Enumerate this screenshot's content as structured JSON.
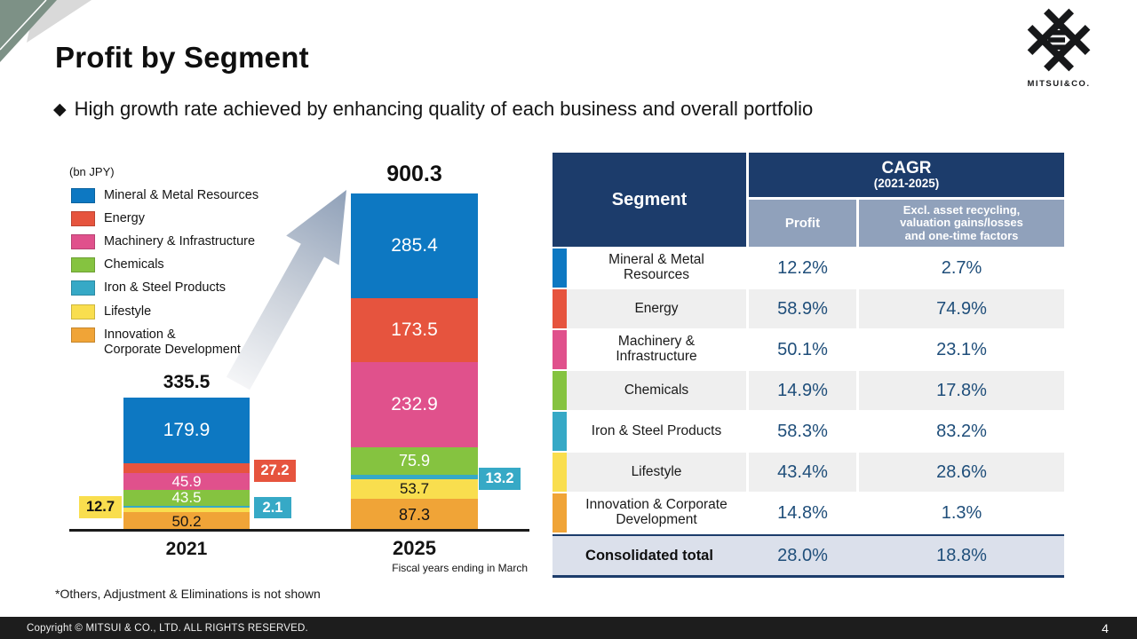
{
  "slide": {
    "title": "Profit by Segment",
    "bullet_glyph": "◆",
    "subtitle": "High growth rate achieved by enhancing quality of each business and overall portfolio",
    "logo_text": "MITSUI&CO.",
    "footer": "Copyright © MITSUI & CO., LTD. ALL RIGHTS RESERVED.",
    "page_number": "4"
  },
  "theme": {
    "header_navy": "#1c3c6b",
    "subheader_blue_gray": "#90a1bb",
    "value_text_navy": "#1f4e7a",
    "row_alt_gray": "#efefef",
    "total_row_bg": "#dbe0eb",
    "footer_bg": "#1d1d1d",
    "corner_green": "#7d9186",
    "corner_gray": "#d9d9d9",
    "arrow_gradient_from": "#f4f5f7",
    "arrow_gradient_to": "#8fa0b8"
  },
  "chart_data": {
    "type": "bar",
    "stacked": true,
    "unit_label": "(bn JPY)",
    "categories": [
      "2021",
      "2025"
    ],
    "totals": [
      335.5,
      900.3
    ],
    "series": [
      {
        "name": "Mineral & Metal Resources",
        "color": "#0d78c2",
        "values": [
          179.9,
          285.4
        ]
      },
      {
        "name": "Energy",
        "color": "#e6543e",
        "values": [
          27.2,
          173.5
        ]
      },
      {
        "name": "Machinery & Infrastructure",
        "color": "#e0518c",
        "values": [
          45.9,
          232.9
        ]
      },
      {
        "name": "Chemicals",
        "color": "#85c340",
        "values": [
          43.5,
          75.9
        ]
      },
      {
        "name": "Iron & Steel Products",
        "color": "#36a9c6",
        "values": [
          2.1,
          13.2
        ]
      },
      {
        "name": "Lifestyle",
        "color": "#f9de4e",
        "values": [
          12.7,
          53.7
        ]
      },
      {
        "name": "Innovation & Corporate Development",
        "color": "#f0a437",
        "values": [
          50.2,
          87.3
        ]
      }
    ],
    "x_note": "Fiscal years ending in March",
    "footnote": "*Others, Adjustment & Eliminations is not shown",
    "legend_position": "upper-left",
    "ylabel": "",
    "xlabel": ""
  },
  "table": {
    "header": {
      "segment": "Segment",
      "cagr_title": "CAGR",
      "cagr_sub": "(2021-2025)",
      "col_profit": "Profit",
      "col_excl": "Excl. asset recycling, valuation gains/losses and one-time factors"
    },
    "rows": [
      {
        "segment": "Mineral & Metal Resources",
        "color": "#0d78c2",
        "profit": "12.2%",
        "excl": "2.7%"
      },
      {
        "segment": "Energy",
        "color": "#e6543e",
        "profit": "58.9%",
        "excl": "74.9%"
      },
      {
        "segment": "Machinery & Infrastructure",
        "color": "#e0518c",
        "profit": "50.1%",
        "excl": "23.1%"
      },
      {
        "segment": "Chemicals",
        "color": "#85c340",
        "profit": "14.9%",
        "excl": "17.8%"
      },
      {
        "segment": "Iron & Steel Products",
        "color": "#36a9c6",
        "profit": "58.3%",
        "excl": "83.2%"
      },
      {
        "segment": "Lifestyle",
        "color": "#f9de4e",
        "profit": "43.4%",
        "excl": "28.6%"
      },
      {
        "segment": "Innovation & Corporate Development",
        "color": "#f0a437",
        "profit": "14.8%",
        "excl": "1.3%"
      }
    ],
    "total_row": {
      "segment": "Consolidated total",
      "profit": "28.0%",
      "excl": "18.8%"
    }
  }
}
